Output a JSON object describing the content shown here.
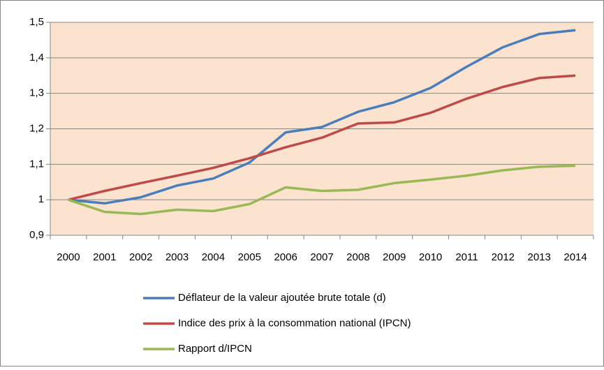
{
  "chart_data": {
    "type": "line",
    "categories": [
      "2000",
      "2001",
      "2002",
      "2003",
      "2004",
      "2005",
      "2006",
      "2007",
      "2008",
      "2009",
      "2010",
      "2011",
      "2012",
      "2013",
      "2014"
    ],
    "series": [
      {
        "name": "Déflateur de la valeur ajoutée brute totale (d)",
        "color": "#4a7ebb",
        "values": [
          1,
          0.99,
          1.007,
          1.04,
          1.06,
          1.105,
          1.19,
          1.205,
          1.248,
          1.275,
          1.315,
          1.375,
          1.43,
          1.467,
          1.478
        ]
      },
      {
        "name": "Indice des prix à la consommation national (IPCN)",
        "color": "#be4b48",
        "values": [
          1,
          1.025,
          1.047,
          1.068,
          1.09,
          1.117,
          1.148,
          1.175,
          1.215,
          1.218,
          1.245,
          1.285,
          1.318,
          1.343,
          1.35
        ]
      },
      {
        "name": "Rapport d/IPCN",
        "color": "#98b954",
        "values": [
          1,
          0.966,
          0.96,
          0.972,
          0.968,
          0.988,
          1.035,
          1.025,
          1.028,
          1.047,
          1.057,
          1.068,
          1.083,
          1.093,
          1.096
        ]
      }
    ],
    "ylim": [
      0.9,
      1.5
    ],
    "yticks": [
      {
        "value": 0.9,
        "label": "0,9"
      },
      1,
      {
        "value": 1.1,
        "label": "1,1"
      },
      {
        "value": 1.2,
        "label": "1,2"
      },
      {
        "value": 1.3,
        "label": "1,3"
      },
      {
        "value": 1.4,
        "label": "1,4"
      },
      {
        "value": 1.5,
        "label": "1,5"
      }
    ],
    "grid": true,
    "legend": "bottom",
    "plot_background": "#fbe3d0"
  }
}
